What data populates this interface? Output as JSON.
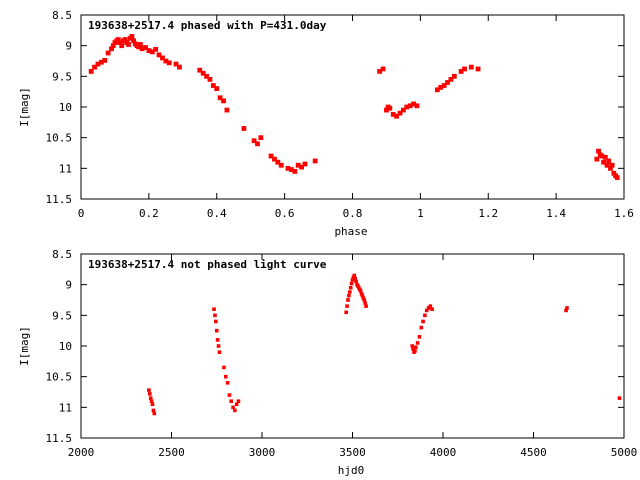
{
  "chart_data": [
    {
      "type": "scatter",
      "title": "193638+2517.4 phased with P=431.0day",
      "xlabel": "phase",
      "ylabel": "I[mag]",
      "xlim": [
        0,
        1.6
      ],
      "ylim": [
        8.5,
        11.5
      ],
      "y_inverted": true,
      "x_ticks": [
        "0",
        "0.2",
        "0.4",
        "0.6",
        "0.8",
        "1",
        "1.2",
        "1.4",
        "1.6"
      ],
      "y_ticks": [
        "8.5",
        "9",
        "9.5",
        "10",
        "10.5",
        "11",
        "11.5"
      ],
      "grid": false,
      "marker_color": "#ff0000",
      "series": [
        {
          "x": [
            0.03,
            0.04,
            0.05,
            0.06,
            0.07,
            0.08,
            0.09,
            0.095,
            0.1,
            0.105,
            0.11,
            0.115,
            0.12,
            0.125,
            0.13,
            0.135,
            0.14,
            0.145,
            0.15,
            0.155,
            0.16,
            0.165,
            0.17,
            0.175,
            0.18,
            0.19,
            0.2,
            0.21,
            0.22,
            0.23,
            0.24,
            0.25,
            0.26,
            0.28,
            0.29,
            0.35,
            0.36,
            0.37,
            0.38,
            0.39,
            0.4,
            0.41,
            0.42,
            0.43,
            0.48,
            0.51,
            0.52,
            0.53,
            0.56,
            0.57,
            0.58,
            0.59,
            0.61,
            0.62,
            0.63,
            0.64,
            0.65,
            0.66,
            0.69,
            0.88,
            0.89,
            0.9,
            0.905,
            0.91,
            0.92,
            0.93,
            0.94,
            0.95,
            0.96,
            0.97,
            0.98,
            0.99,
            1.05,
            1.06,
            1.07,
            1.08,
            1.09,
            1.1,
            1.12,
            1.13,
            1.15,
            1.17,
            1.52,
            1.525,
            1.53,
            1.535,
            1.54,
            1.545,
            1.55,
            1.555,
            1.56,
            1.565,
            1.57,
            1.575,
            1.58
          ],
          "y": [
            9.42,
            9.35,
            9.3,
            9.27,
            9.24,
            9.12,
            9.05,
            9.0,
            8.95,
            8.92,
            8.9,
            8.95,
            9.0,
            8.92,
            8.9,
            8.95,
            8.98,
            8.88,
            8.85,
            8.92,
            8.97,
            9.0,
            9.02,
            8.98,
            9.05,
            9.03,
            9.08,
            9.1,
            9.06,
            9.15,
            9.2,
            9.25,
            9.28,
            9.3,
            9.35,
            9.4,
            9.45,
            9.5,
            9.55,
            9.65,
            9.7,
            9.85,
            9.9,
            10.05,
            10.35,
            10.55,
            10.6,
            10.5,
            10.8,
            10.85,
            10.9,
            10.95,
            11.0,
            11.02,
            11.05,
            10.95,
            10.98,
            10.93,
            10.88,
            9.42,
            9.38,
            10.05,
            10.0,
            10.02,
            10.12,
            10.15,
            10.1,
            10.05,
            10.0,
            9.98,
            9.95,
            9.98,
            9.72,
            9.68,
            9.65,
            9.6,
            9.55,
            9.5,
            9.42,
            9.38,
            9.35,
            9.38,
            10.85,
            10.72,
            10.78,
            10.8,
            10.9,
            10.82,
            10.95,
            10.88,
            11.0,
            10.95,
            11.08,
            11.12,
            11.15
          ]
        }
      ]
    },
    {
      "type": "scatter",
      "title": "193638+2517.4 not phased light curve",
      "xlabel": "hjd0",
      "ylabel": "I[mag]",
      "xlim": [
        2000,
        5000
      ],
      "ylim": [
        8.5,
        11.5
      ],
      "y_inverted": true,
      "x_ticks": [
        "2000",
        "2500",
        "3000",
        "3500",
        "4000",
        "4500",
        "5000"
      ],
      "y_ticks": [
        "8.5",
        "9",
        "9.5",
        "10",
        "10.5",
        "11",
        "11.5"
      ],
      "grid": false,
      "marker_color": "#ff0000",
      "series": [
        {
          "x": [
            2375,
            2380,
            2385,
            2390,
            2395,
            2400,
            2405,
            2735,
            2740,
            2745,
            2750,
            2755,
            2760,
            2765,
            2790,
            2800,
            2810,
            2820,
            2830,
            2840,
            2850,
            2860,
            2870,
            3465,
            3470,
            3475,
            3480,
            3485,
            3490,
            3495,
            3500,
            3505,
            3510,
            3515,
            3520,
            3525,
            3530,
            3535,
            3540,
            3545,
            3550,
            3555,
            3560,
            3565,
            3570,
            3575,
            3830,
            3835,
            3840,
            3845,
            3850,
            3860,
            3870,
            3880,
            3890,
            3900,
            3910,
            3920,
            3930,
            3940,
            4680,
            4685,
            4975
          ],
          "y": [
            10.72,
            10.78,
            10.85,
            10.9,
            10.95,
            11.05,
            11.1,
            9.4,
            9.5,
            9.6,
            9.75,
            9.9,
            10.0,
            10.1,
            10.35,
            10.5,
            10.6,
            10.8,
            10.9,
            11.0,
            11.05,
            10.95,
            10.9,
            9.45,
            9.35,
            9.25,
            9.18,
            9.12,
            9.05,
            8.98,
            8.92,
            8.88,
            8.85,
            8.9,
            8.95,
            9.0,
            9.02,
            9.05,
            9.08,
            9.1,
            9.15,
            9.18,
            9.22,
            9.25,
            9.3,
            9.35,
            10.0,
            10.05,
            10.1,
            10.08,
            10.02,
            9.95,
            9.85,
            9.7,
            9.6,
            9.5,
            9.42,
            9.38,
            9.35,
            9.4,
            9.42,
            9.38,
            10.85
          ]
        }
      ]
    }
  ]
}
